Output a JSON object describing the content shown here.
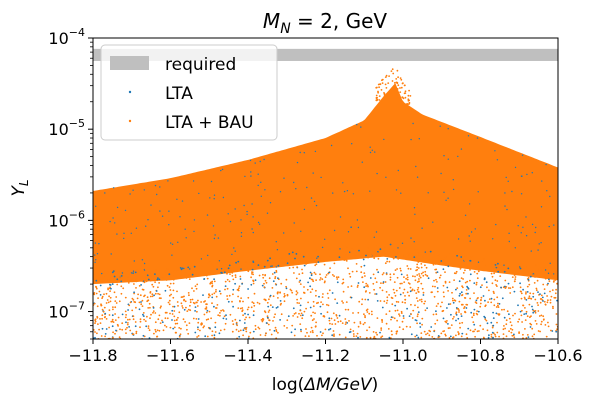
{
  "chart_data": {
    "type": "scatter",
    "title_main": "M",
    "title_sub": "N",
    "title_rest": " = 2, GeV",
    "xlabel_prefix": "log(",
    "xlabel_italic": "ΔM/GeV",
    "xlabel_suffix": ")",
    "ylabel_main": "Y",
    "ylabel_sub": "L",
    "x_range": [
      -11.8,
      -10.6
    ],
    "y_range": [
      5e-08,
      0.0001
    ],
    "y_scale": "log",
    "grid": false,
    "legend_position": "top-left",
    "x_ticks": [
      "−11.8",
      "−11.6",
      "−11.4",
      "−11.2",
      "−11.0",
      "−10.8",
      "−10.6"
    ],
    "x_tick_values": [
      -11.8,
      -11.6,
      -11.4,
      -11.2,
      -11.0,
      -10.8,
      -10.6
    ],
    "y_ticks": [
      {
        "value": 1e-07,
        "base": "10",
        "exp": "−7"
      },
      {
        "value": 1e-06,
        "base": "10",
        "exp": "−6"
      },
      {
        "value": 1e-05,
        "base": "10",
        "exp": "−5"
      },
      {
        "value": 0.0001,
        "base": "10",
        "exp": "−4"
      }
    ],
    "required_band": {
      "label": "required",
      "ymin": 5.6e-05,
      "ymax": 7.6e-05,
      "color": "#bfbfbf"
    },
    "series": [
      {
        "name": "LTA",
        "color": "#1f77b4",
        "marker": "point"
      },
      {
        "name": "LTA + BAU",
        "color": "#ff7f0e",
        "marker": "point"
      }
    ],
    "upper_envelope": [
      [
        -11.8,
        2.1e-06
      ],
      [
        -11.6,
        2.9e-06
      ],
      [
        -11.4,
        4.6e-06
      ],
      [
        -11.2,
        8e-06
      ],
      [
        -11.1,
        1.25e-05
      ],
      [
        -11.05,
        2.3e-05
      ],
      [
        -11.02,
        3.2e-05
      ],
      [
        -11.0,
        2e-05
      ],
      [
        -10.95,
        1.45e-05
      ],
      [
        -10.8,
        8.2e-06
      ],
      [
        -10.6,
        3.8e-06
      ]
    ],
    "dense_floor": [
      [
        -11.8,
        2e-07
      ],
      [
        -11.6,
        2.2e-07
      ],
      [
        -11.4,
        2.8e-07
      ],
      [
        -11.2,
        3.5e-07
      ],
      [
        -11.05,
        4e-07
      ],
      [
        -10.9,
        3.2e-07
      ],
      [
        -10.8,
        2.8e-07
      ],
      [
        -10.6,
        2.2e-07
      ]
    ]
  }
}
